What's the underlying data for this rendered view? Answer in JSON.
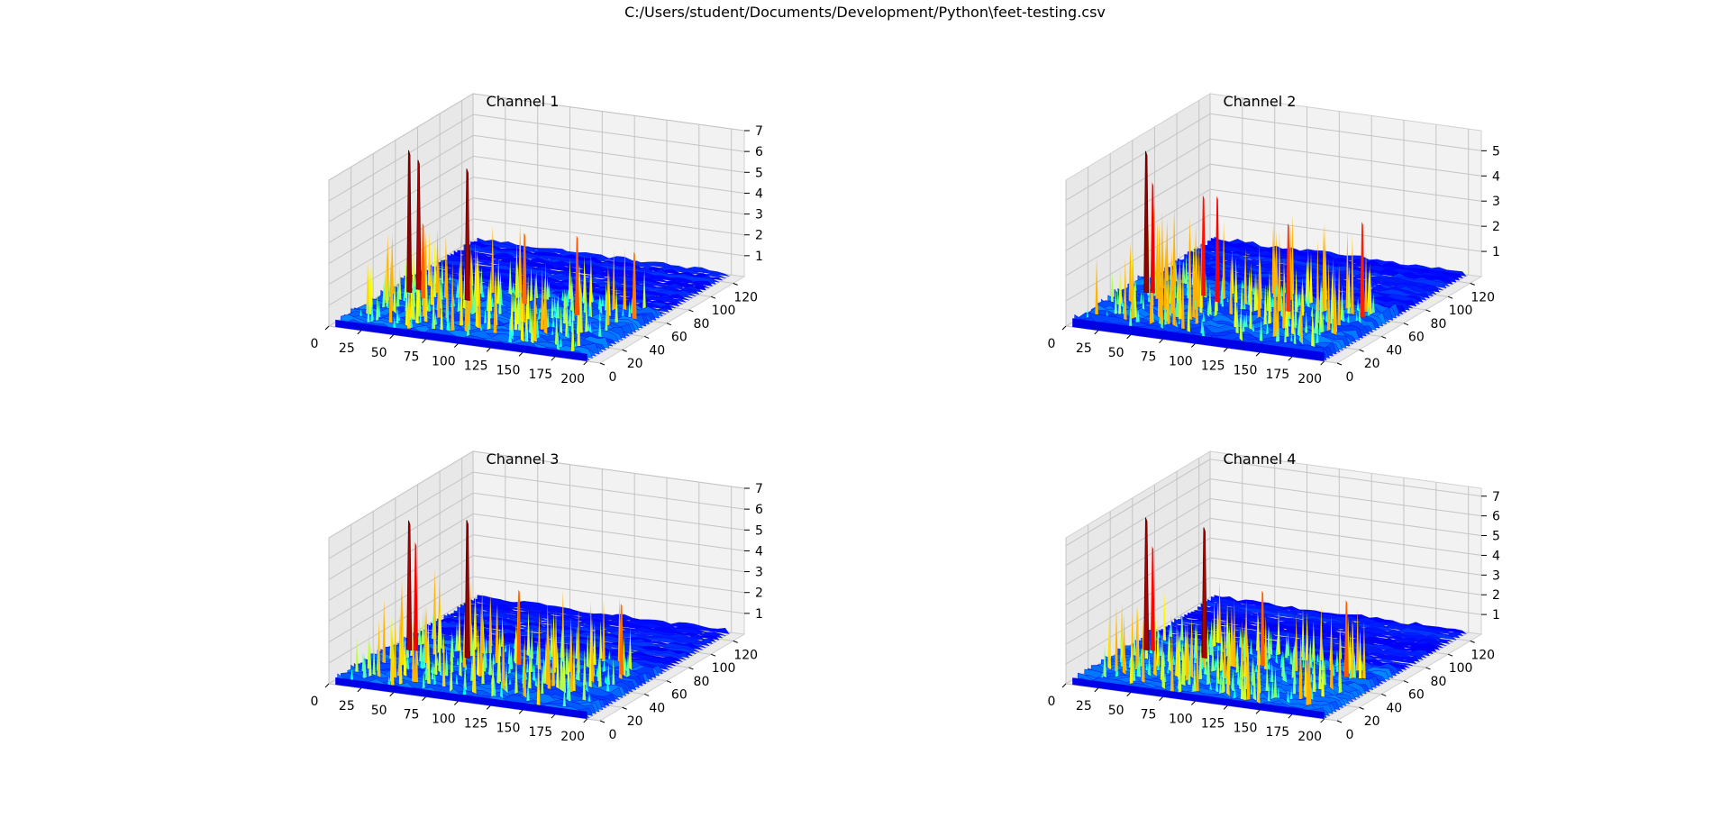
{
  "figure": {
    "suptitle": "C:/Users/student/Documents/Development/Python\\feet-testing.csv",
    "colormap": "jet"
  },
  "chart_data": [
    {
      "type": "surface3d",
      "title": "Channel 1",
      "x_range": [
        0,
        210
      ],
      "y_range": [
        0,
        130
      ],
      "z_range": [
        0,
        7
      ],
      "x_ticks": [
        "0",
        "25",
        "50",
        "75",
        "100",
        "125",
        "150",
        "175",
        "200"
      ],
      "y_ticks": [
        "0",
        "20",
        "40",
        "60",
        "80",
        "100",
        "120"
      ],
      "z_ticks": [
        "1",
        "2",
        "3",
        "4",
        "5",
        "6",
        "7"
      ],
      "grid": true,
      "peaks": [
        {
          "x": 15,
          "y": 55,
          "z": 6.8
        },
        {
          "x": 18,
          "y": 60,
          "z": 6.2
        },
        {
          "x": 60,
          "y": 55,
          "z": 6.3
        },
        {
          "x": 30,
          "y": 50,
          "z": 3.6
        },
        {
          "x": 100,
          "y": 60,
          "z": 3.4
        },
        {
          "x": 145,
          "y": 55,
          "z": 3.8
        },
        {
          "x": 185,
          "y": 60,
          "z": 3.2
        }
      ]
    },
    {
      "type": "surface3d",
      "title": "Channel 2",
      "x_range": [
        0,
        210
      ],
      "y_range": [
        0,
        130
      ],
      "z_range": [
        0,
        5.8
      ],
      "x_ticks": [
        "0",
        "25",
        "50",
        "75",
        "100",
        "125",
        "150",
        "175",
        "200"
      ],
      "y_ticks": [
        "0",
        "20",
        "40",
        "60",
        "80",
        "100",
        "120"
      ],
      "z_ticks": [
        "1",
        "2",
        "3",
        "4",
        "5"
      ],
      "grid": true,
      "peaks": [
        {
          "x": 15,
          "y": 55,
          "z": 5.6
        },
        {
          "x": 20,
          "y": 55,
          "z": 4.4
        },
        {
          "x": 70,
          "y": 55,
          "z": 4.2
        },
        {
          "x": 55,
          "y": 60,
          "z": 4.0
        },
        {
          "x": 125,
          "y": 55,
          "z": 3.5
        },
        {
          "x": 178,
          "y": 60,
          "z": 3.8
        }
      ]
    },
    {
      "type": "surface3d",
      "title": "Channel 3",
      "x_range": [
        0,
        210
      ],
      "y_range": [
        0,
        130
      ],
      "z_range": [
        0,
        7
      ],
      "x_ticks": [
        "0",
        "25",
        "50",
        "75",
        "100",
        "125",
        "150",
        "175",
        "200"
      ],
      "y_ticks": [
        "0",
        "20",
        "40",
        "60",
        "80",
        "100",
        "120"
      ],
      "z_ticks": [
        "1",
        "2",
        "3",
        "4",
        "5",
        "6",
        "7"
      ],
      "grid": true,
      "peaks": [
        {
          "x": 15,
          "y": 55,
          "z": 6.2
        },
        {
          "x": 20,
          "y": 55,
          "z": 5.2
        },
        {
          "x": 60,
          "y": 55,
          "z": 6.6
        },
        {
          "x": 100,
          "y": 55,
          "z": 3.6
        },
        {
          "x": 175,
          "y": 60,
          "z": 3.4
        }
      ]
    },
    {
      "type": "surface3d",
      "title": "Channel 4",
      "x_range": [
        0,
        210
      ],
      "y_range": [
        0,
        130
      ],
      "z_range": [
        0,
        7.4
      ],
      "x_ticks": [
        "0",
        "25",
        "50",
        "75",
        "100",
        "125",
        "150",
        "175",
        "200"
      ],
      "y_ticks": [
        "0",
        "20",
        "40",
        "60",
        "80",
        "100",
        "120"
      ],
      "z_ticks": [
        "1",
        "2",
        "3",
        "4",
        "5",
        "6",
        "7"
      ],
      "grid": true,
      "peaks": [
        {
          "x": 15,
          "y": 55,
          "z": 6.7
        },
        {
          "x": 20,
          "y": 55,
          "z": 5.3
        },
        {
          "x": 60,
          "y": 55,
          "z": 6.6
        },
        {
          "x": 105,
          "y": 55,
          "z": 3.8
        },
        {
          "x": 170,
          "y": 55,
          "z": 3.9
        }
      ]
    }
  ]
}
